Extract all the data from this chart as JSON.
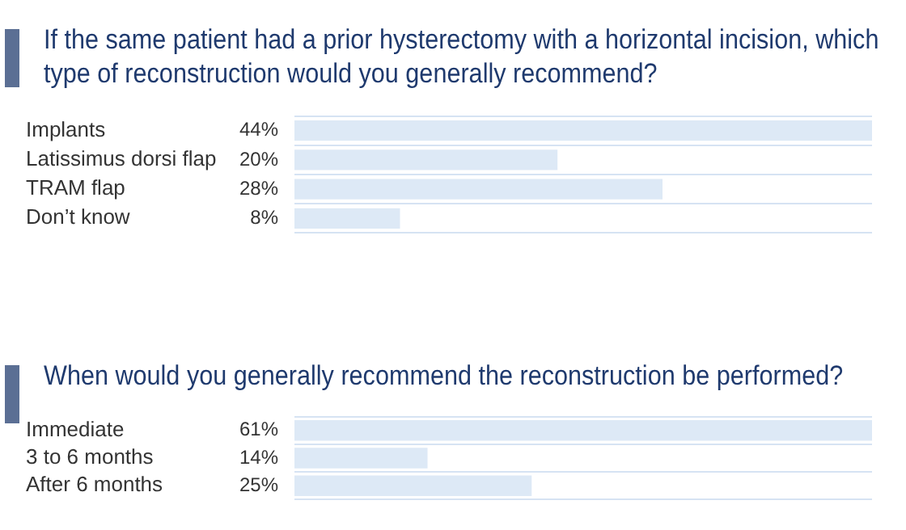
{
  "chart_data": [
    {
      "type": "bar",
      "orientation": "horizontal",
      "title": "If the same patient had a prior hysterectomy with a horizontal incision, which type of reconstruction would you generally recommend?",
      "categories": [
        "Implants",
        "Latissimus dorsi flap",
        "TRAM flap",
        "Don’t know"
      ],
      "values": [
        44,
        20,
        28,
        8
      ],
      "value_labels": [
        "44%",
        "20%",
        "28%",
        "8%"
      ],
      "color": "#dde9f6",
      "grid": "y"
    },
    {
      "type": "bar",
      "orientation": "horizontal",
      "title": "When would you generally recommend the reconstruction be performed?",
      "categories": [
        "Immediate",
        "3 to 6 months",
        "After 6 months"
      ],
      "values": [
        61,
        14,
        25
      ],
      "value_labels": [
        "61%",
        "14%",
        "25%"
      ],
      "color": "#dde9f6",
      "grid": "y"
    }
  ]
}
